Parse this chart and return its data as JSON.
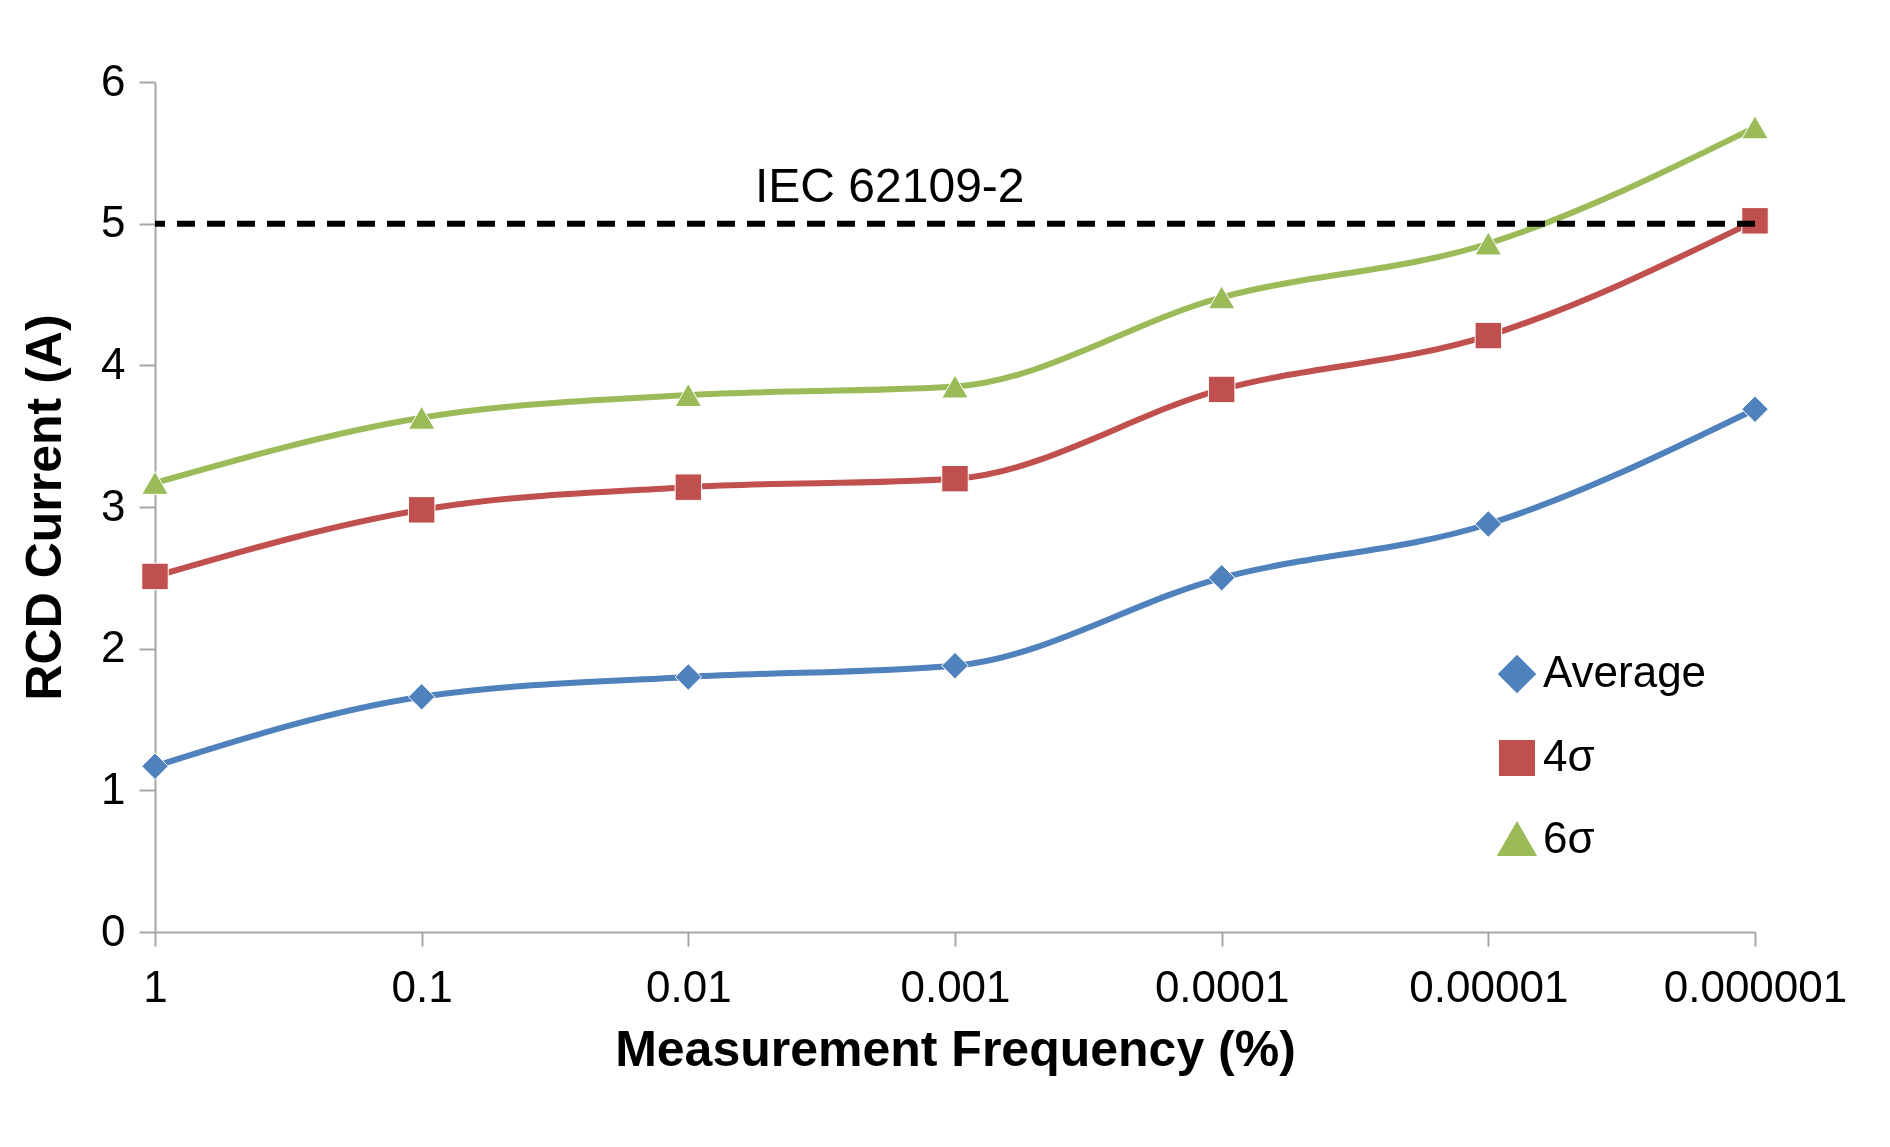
{
  "chart_data": {
    "type": "line",
    "xlabel": "Measurement Frequency (%)",
    "ylabel": "RCD Current (A)",
    "categories": [
      "1",
      "0.1",
      "0.01",
      "0.001",
      "0.0001",
      "0.00001",
      "0.000001"
    ],
    "series": [
      {
        "name": "Average",
        "color": "#4f81bd",
        "marker": "diamond",
        "values": [
          1.17,
          1.66,
          1.8,
          1.88,
          2.5,
          2.88,
          3.69
        ]
      },
      {
        "name": "4σ",
        "color": "#c0504d",
        "marker": "square",
        "values": [
          2.51,
          2.98,
          3.14,
          3.2,
          3.83,
          4.21,
          5.02
        ]
      },
      {
        "name": "6σ",
        "color": "#9bbb59",
        "marker": "triangle",
        "values": [
          3.17,
          3.63,
          3.79,
          3.85,
          4.48,
          4.86,
          5.68
        ]
      }
    ],
    "ylim": [
      0,
      6
    ],
    "yticks": [
      0,
      1,
      2,
      3,
      4,
      5,
      6
    ],
    "ref_lines": [
      {
        "axis": "y",
        "value": 5,
        "label": "IEC 62109-2",
        "color": "#000000",
        "line_style": "dashed"
      }
    ],
    "grid": false,
    "legend": "bottom right",
    "line_style": "solid"
  }
}
